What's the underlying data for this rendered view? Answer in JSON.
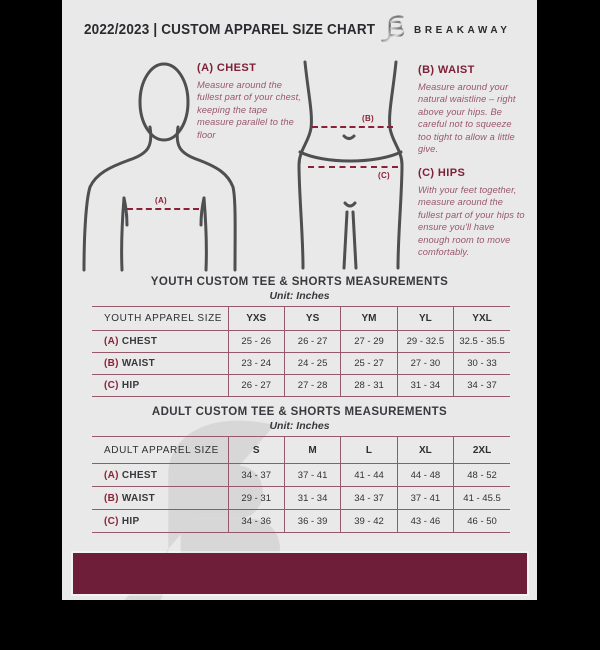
{
  "colors": {
    "canvas_black": "#000000",
    "document_bg": "#e9e9ea",
    "maroon_accent": "#6e1e38",
    "table_line": "#96586b",
    "dash_line": "#8c2036",
    "text_dark": "#2b2b2f"
  },
  "header": {
    "title": "2022/2023  |  CUSTOM APPAREL SIZE CHART",
    "brand": "BREAKAWAY",
    "logo_icon": "breakaway-b-logo"
  },
  "guide": {
    "chest": {
      "heading": "(A) CHEST",
      "body": "Measure around the fullest part of your chest, keeping the tape measure parallel to the floor",
      "marker": "(A)"
    },
    "waist": {
      "heading": "(B) WAIST",
      "body": "Measure around your natural waistline – right above your hips. Be careful not to squeeze too tight to allow a little give.",
      "marker": "(B)"
    },
    "hips": {
      "heading": "(C) HIPS",
      "body": "With your feet together, measure around the fullest part of your hips to ensure you'll have enough room to move comfortably.",
      "marker": "(C)"
    }
  },
  "youth": {
    "title": "YOUTH CUSTOM TEE & SHORTS MEASUREMENTS",
    "unit": "Unit: Inches",
    "header": [
      "YOUTH APPAREL SIZE",
      "YXS",
      "YS",
      "YM",
      "YL",
      "YXL"
    ],
    "rows": [
      {
        "prefix": "(A)",
        "label": "CHEST",
        "values": [
          "25 - 26",
          "26 - 27",
          "27 - 29",
          "29 - 32.5",
          "32.5 - 35.5"
        ]
      },
      {
        "prefix": "(B)",
        "label": "WAIST",
        "values": [
          "23 - 24",
          "24 - 25",
          "25 - 27",
          "27 - 30",
          "30 - 33"
        ]
      },
      {
        "prefix": "(C)",
        "label": "HIP",
        "values": [
          "26 - 27",
          "27 - 28",
          "28 - 31",
          "31 - 34",
          "34 - 37"
        ]
      }
    ]
  },
  "adult": {
    "title": "ADULT CUSTOM TEE & SHORTS MEASUREMENTS",
    "unit": "Unit: Inches",
    "header": [
      "ADULT APPAREL SIZE",
      "S",
      "M",
      "L",
      "XL",
      "2XL"
    ],
    "rows": [
      {
        "prefix": "(A)",
        "label": "CHEST",
        "values": [
          "34 - 37",
          "37 - 41",
          "41 - 44",
          "44 - 48",
          "48 - 52"
        ]
      },
      {
        "prefix": "(B)",
        "label": "WAIST",
        "values": [
          "29 - 31",
          "31 - 34",
          "34 - 37",
          "37 - 41",
          "41 - 45.5"
        ]
      },
      {
        "prefix": "(C)",
        "label": "HIP",
        "values": [
          "34 - 36",
          "36 - 39",
          "39 - 42",
          "43 - 46",
          "46 - 50"
        ]
      }
    ]
  }
}
